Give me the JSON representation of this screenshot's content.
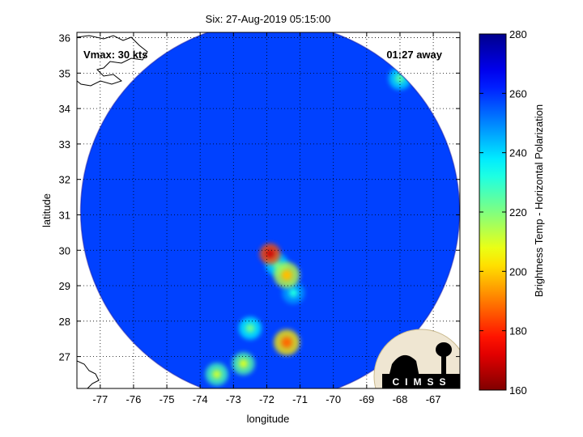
{
  "chart_data": {
    "type": "heatmap",
    "title": "Six: 27-Aug-2019 05:15:00",
    "xlabel": "longitude",
    "ylabel": "latitude",
    "xlim": [
      -77.7,
      -66.2
    ],
    "ylim": [
      26.1,
      36.15
    ],
    "x_ticks": [
      -77,
      -76,
      -75,
      -74,
      -73,
      -72,
      -71,
      -70,
      -69,
      -68,
      -67
    ],
    "y_ticks": [
      27,
      28,
      29,
      30,
      31,
      32,
      33,
      34,
      35,
      36
    ],
    "grid": true,
    "colorbar": {
      "label": "Brightness Temp - Horizontal Polarization",
      "range": [
        160,
        280
      ],
      "ticks": [
        160,
        180,
        200,
        220,
        240,
        260,
        280
      ],
      "colormap": "jet-reversed"
    },
    "annotations": {
      "vmax": "Vmax: 30 kts",
      "time_away": "01:27 away"
    },
    "swath": {
      "center_lon": -71.9,
      "center_lat": 31.1,
      "background_temp": 258
    },
    "features": [
      {
        "lon": -71.9,
        "lat": 29.9,
        "temp": 170
      },
      {
        "lon": -71.4,
        "lat": 29.3,
        "temp": 198
      },
      {
        "lon": -71.7,
        "lat": 29.6,
        "temp": 225
      },
      {
        "lon": -71.4,
        "lat": 27.4,
        "temp": 188
      },
      {
        "lon": -73.5,
        "lat": 26.5,
        "temp": 212
      },
      {
        "lon": -72.7,
        "lat": 26.8,
        "temp": 210
      },
      {
        "lon": -72.5,
        "lat": 27.8,
        "temp": 222
      },
      {
        "lon": -71.2,
        "lat": 28.8,
        "temp": 232
      },
      {
        "lon": -68.0,
        "lat": 34.85,
        "temp": 225
      }
    ],
    "logo": "CIMSS"
  }
}
